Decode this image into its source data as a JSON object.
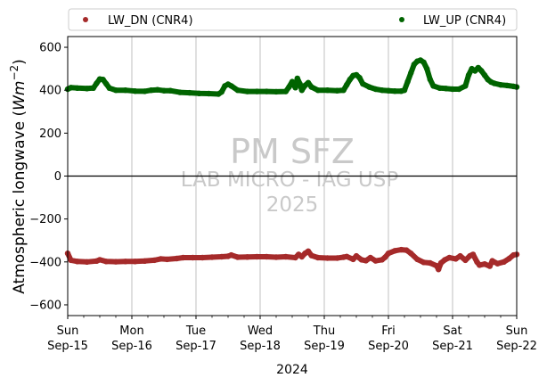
{
  "chart_data": {
    "type": "scatter",
    "ylabel_prefix": "Atmospheric longwave (",
    "ylabel_math_base": "Wm",
    "ylabel_math_exp": "−2",
    "ylabel_suffix": ")",
    "xlabel": "2024",
    "ylim": [
      -650,
      650
    ],
    "yticks": [
      -600,
      -400,
      -200,
      0,
      200,
      400,
      600
    ],
    "xlim": [
      0,
      7
    ],
    "xticks": [
      {
        "x": 0,
        "day": "Sun",
        "date": "Sep-15"
      },
      {
        "x": 1,
        "day": "Mon",
        "date": "Sep-16"
      },
      {
        "x": 2,
        "day": "Tue",
        "date": "Sep-17"
      },
      {
        "x": 3,
        "day": "Wed",
        "date": "Sep-18"
      },
      {
        "x": 4,
        "day": "Thu",
        "date": "Sep-19"
      },
      {
        "x": 5,
        "day": "Fri",
        "date": "Sep-20"
      },
      {
        "x": 6,
        "day": "Sat",
        "date": "Sep-21"
      },
      {
        "x": 7,
        "day": "Sun",
        "date": "Sep-22"
      }
    ],
    "grid": "vertical",
    "zero_line": true,
    "legend": {
      "placement": "top-outside"
    },
    "watermark": {
      "title": "PM SFZ",
      "line1": "LAB MICRO - IAG USP",
      "line2": "2025"
    },
    "series": [
      {
        "name": "LW_DN (CNR4)",
        "color": "#a52a2a",
        "points": [
          [
            0.0,
            -360
          ],
          [
            0.05,
            -392
          ],
          [
            0.15,
            -398
          ],
          [
            0.3,
            -400
          ],
          [
            0.45,
            -396
          ],
          [
            0.5,
            -390
          ],
          [
            0.6,
            -398
          ],
          [
            0.75,
            -399
          ],
          [
            0.9,
            -398
          ],
          [
            1.05,
            -398
          ],
          [
            1.2,
            -396
          ],
          [
            1.35,
            -392
          ],
          [
            1.45,
            -386
          ],
          [
            1.55,
            -388
          ],
          [
            1.7,
            -384
          ],
          [
            1.8,
            -380
          ],
          [
            1.95,
            -380
          ],
          [
            2.1,
            -380
          ],
          [
            2.25,
            -378
          ],
          [
            2.4,
            -376
          ],
          [
            2.5,
            -374
          ],
          [
            2.55,
            -368
          ],
          [
            2.65,
            -378
          ],
          [
            2.8,
            -377
          ],
          [
            2.95,
            -376
          ],
          [
            3.1,
            -376
          ],
          [
            3.25,
            -378
          ],
          [
            3.4,
            -376
          ],
          [
            3.55,
            -380
          ],
          [
            3.6,
            -365
          ],
          [
            3.65,
            -376
          ],
          [
            3.7,
            -360
          ],
          [
            3.75,
            -350
          ],
          [
            3.8,
            -370
          ],
          [
            3.9,
            -380
          ],
          [
            4.05,
            -382
          ],
          [
            4.2,
            -382
          ],
          [
            4.3,
            -378
          ],
          [
            4.35,
            -375
          ],
          [
            4.45,
            -388
          ],
          [
            4.5,
            -372
          ],
          [
            4.58,
            -390
          ],
          [
            4.65,
            -394
          ],
          [
            4.72,
            -380
          ],
          [
            4.8,
            -395
          ],
          [
            4.9,
            -390
          ],
          [
            4.95,
            -378
          ],
          [
            5.0,
            -360
          ],
          [
            5.1,
            -348
          ],
          [
            5.2,
            -343
          ],
          [
            5.28,
            -345
          ],
          [
            5.35,
            -360
          ],
          [
            5.45,
            -388
          ],
          [
            5.55,
            -402
          ],
          [
            5.65,
            -405
          ],
          [
            5.75,
            -418
          ],
          [
            5.78,
            -435
          ],
          [
            5.82,
            -405
          ],
          [
            5.88,
            -390
          ],
          [
            5.95,
            -380
          ],
          [
            6.05,
            -386
          ],
          [
            6.12,
            -372
          ],
          [
            6.2,
            -392
          ],
          [
            6.27,
            -372
          ],
          [
            6.32,
            -365
          ],
          [
            6.38,
            -400
          ],
          [
            6.42,
            -415
          ],
          [
            6.5,
            -410
          ],
          [
            6.58,
            -420
          ],
          [
            6.62,
            -395
          ],
          [
            6.7,
            -408
          ],
          [
            6.8,
            -400
          ],
          [
            6.88,
            -385
          ],
          [
            6.95,
            -368
          ],
          [
            7.0,
            -365
          ]
        ]
      },
      {
        "name": "LW_UP (CNR4)",
        "color": "#006400",
        "points": [
          [
            0.0,
            405
          ],
          [
            0.05,
            412
          ],
          [
            0.15,
            410
          ],
          [
            0.3,
            408
          ],
          [
            0.4,
            410
          ],
          [
            0.45,
            432
          ],
          [
            0.5,
            452
          ],
          [
            0.55,
            450
          ],
          [
            0.6,
            430
          ],
          [
            0.65,
            410
          ],
          [
            0.75,
            400
          ],
          [
            0.9,
            400
          ],
          [
            1.05,
            396
          ],
          [
            1.2,
            395
          ],
          [
            1.3,
            400
          ],
          [
            1.4,
            402
          ],
          [
            1.5,
            398
          ],
          [
            1.6,
            398
          ],
          [
            1.75,
            390
          ],
          [
            1.9,
            388
          ],
          [
            2.05,
            385
          ],
          [
            2.2,
            384
          ],
          [
            2.35,
            382
          ],
          [
            2.4,
            392
          ],
          [
            2.45,
            420
          ],
          [
            2.5,
            428
          ],
          [
            2.55,
            420
          ],
          [
            2.65,
            400
          ],
          [
            2.8,
            394
          ],
          [
            2.95,
            394
          ],
          [
            3.1,
            394
          ],
          [
            3.25,
            393
          ],
          [
            3.4,
            394
          ],
          [
            3.45,
            415
          ],
          [
            3.5,
            440
          ],
          [
            3.52,
            425
          ],
          [
            3.55,
            412
          ],
          [
            3.58,
            455
          ],
          [
            3.62,
            430
          ],
          [
            3.65,
            400
          ],
          [
            3.7,
            422
          ],
          [
            3.75,
            435
          ],
          [
            3.8,
            415
          ],
          [
            3.9,
            400
          ],
          [
            4.05,
            400
          ],
          [
            4.2,
            398
          ],
          [
            4.3,
            400
          ],
          [
            4.35,
            425
          ],
          [
            4.4,
            450
          ],
          [
            4.45,
            468
          ],
          [
            4.5,
            472
          ],
          [
            4.55,
            458
          ],
          [
            4.6,
            430
          ],
          [
            4.7,
            415
          ],
          [
            4.8,
            405
          ],
          [
            4.9,
            400
          ],
          [
            5.0,
            398
          ],
          [
            5.1,
            396
          ],
          [
            5.2,
            396
          ],
          [
            5.25,
            400
          ],
          [
            5.3,
            440
          ],
          [
            5.35,
            480
          ],
          [
            5.4,
            520
          ],
          [
            5.45,
            535
          ],
          [
            5.5,
            540
          ],
          [
            5.55,
            530
          ],
          [
            5.6,
            500
          ],
          [
            5.65,
            450
          ],
          [
            5.7,
            420
          ],
          [
            5.8,
            410
          ],
          [
            5.9,
            408
          ],
          [
            6.0,
            405
          ],
          [
            6.1,
            405
          ],
          [
            6.2,
            420
          ],
          [
            6.25,
            470
          ],
          [
            6.3,
            500
          ],
          [
            6.35,
            490
          ],
          [
            6.4,
            505
          ],
          [
            6.45,
            490
          ],
          [
            6.5,
            470
          ],
          [
            6.55,
            450
          ],
          [
            6.6,
            438
          ],
          [
            6.65,
            432
          ],
          [
            6.75,
            425
          ],
          [
            6.85,
            422
          ],
          [
            6.95,
            418
          ],
          [
            7.0,
            415
          ]
        ]
      }
    ]
  }
}
